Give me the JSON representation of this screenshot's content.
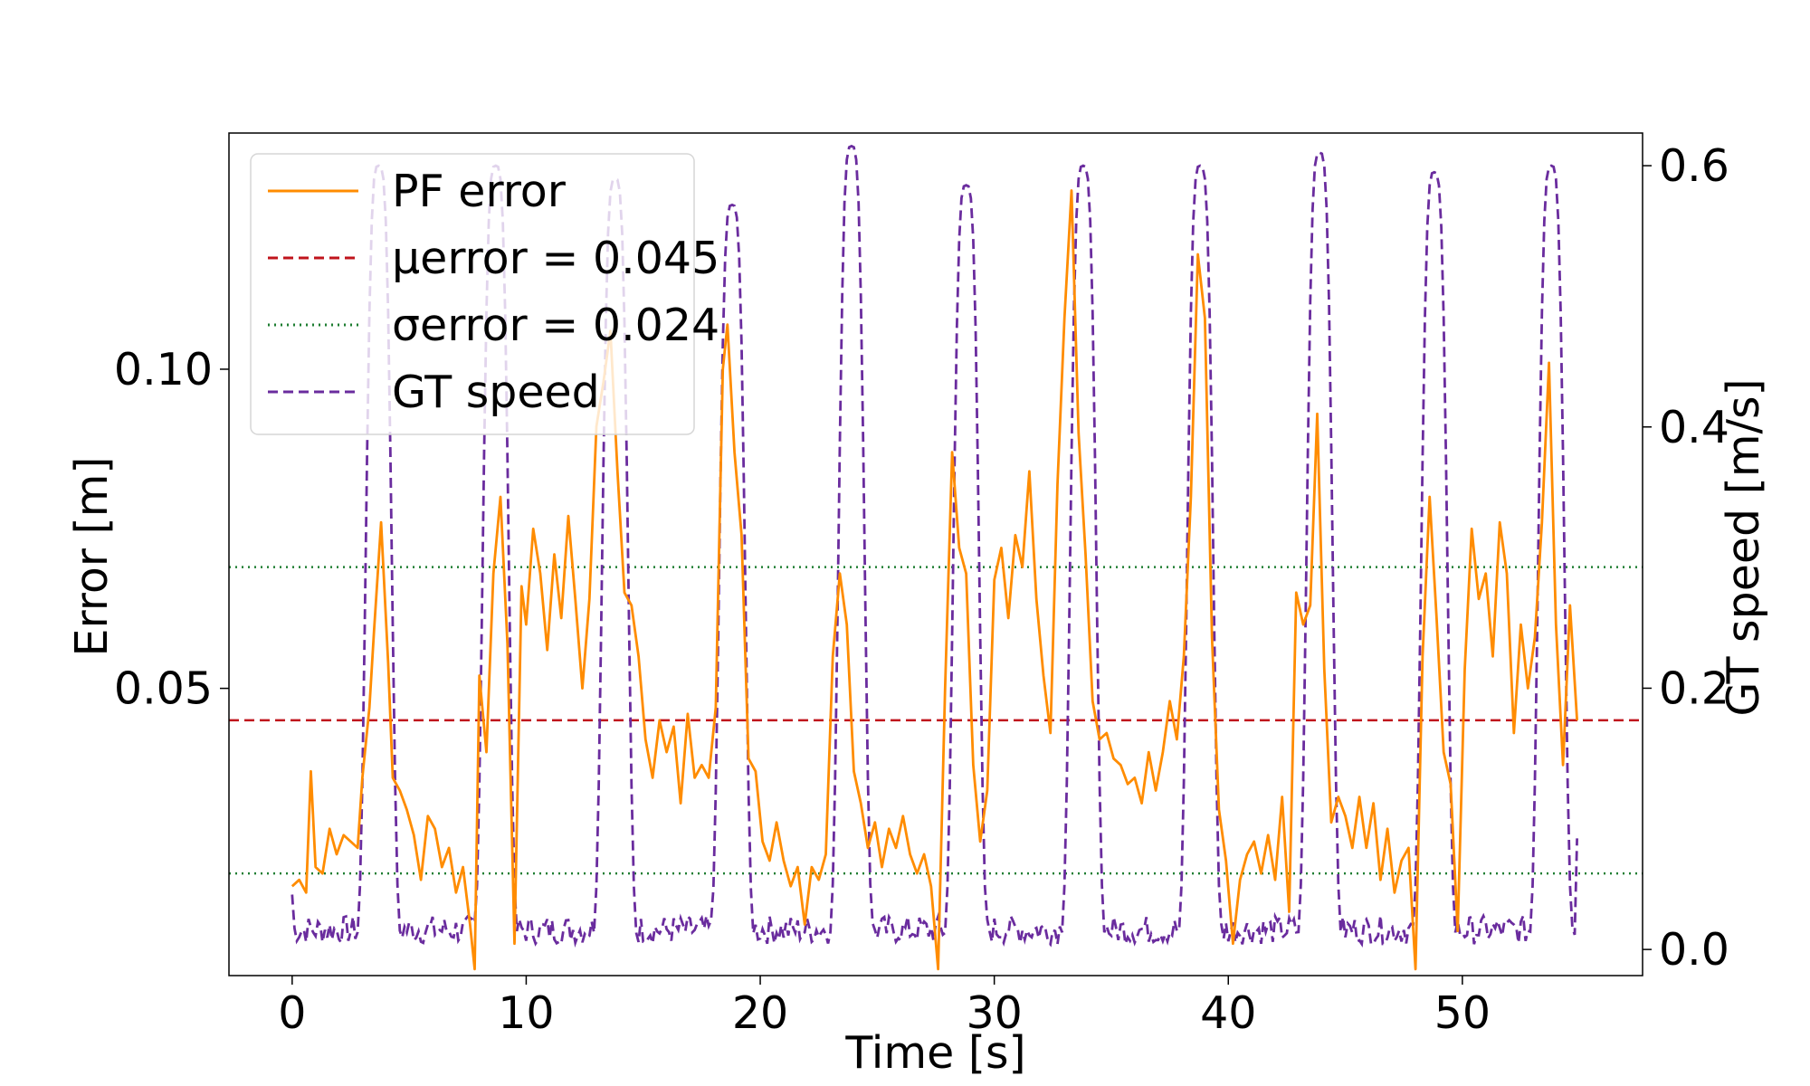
{
  "chart_data": {
    "type": "line",
    "xlabel": "Time [s]",
    "ylabel_left": "Error [m]",
    "ylabel_right": "GT speed [m/s]",
    "xlim": [
      -2.7,
      57.7
    ],
    "ylim_left": [
      0.005,
      0.137
    ],
    "ylim_right": [
      -0.02,
      0.625
    ],
    "xticks": [
      0,
      10,
      20,
      30,
      40,
      50
    ],
    "xtick_labels": [
      "0",
      "10",
      "20",
      "30",
      "40",
      "50"
    ],
    "yticks_left": [
      0.05,
      0.1
    ],
    "ytick_labels_left": [
      "0.05",
      "0.10"
    ],
    "yticks_right": [
      0.0,
      0.2,
      0.4,
      0.6
    ],
    "ytick_labels_right": [
      "0.0",
      "0.2",
      "0.4",
      "0.6"
    ],
    "legend": {
      "position": "top-left",
      "entries": [
        {
          "label": "PF error",
          "color": "#ff8c00",
          "style": "solid"
        },
        {
          "label": "μerror = 0.045",
          "color": "#c0141c",
          "style": "dashed"
        },
        {
          "label": "σerror = 0.024",
          "color": "#1e7d32",
          "style": "dotted"
        },
        {
          "label": "GT speed",
          "color": "#6a2c9e",
          "style": "dashed"
        }
      ]
    },
    "hlines": [
      {
        "name": "mean",
        "y": 0.045,
        "color": "#c0141c",
        "style": "dashed"
      },
      {
        "name": "mean+std",
        "y": 0.069,
        "color": "#1e7d32",
        "style": "dotted"
      },
      {
        "name": "mean-std",
        "y": 0.021,
        "color": "#1e7d32",
        "style": "dotted"
      }
    ],
    "gt_speed": {
      "color": "#6a2c9e",
      "axis": "right",
      "peaks": [
        {
          "t": 3.7,
          "v": 0.6
        },
        {
          "t": 8.7,
          "v": 0.6
        },
        {
          "t": 13.8,
          "v": 0.59
        },
        {
          "t": 18.8,
          "v": 0.57
        },
        {
          "t": 23.9,
          "v": 0.615
        },
        {
          "t": 28.8,
          "v": 0.585
        },
        {
          "t": 33.8,
          "v": 0.6
        },
        {
          "t": 38.8,
          "v": 0.6
        },
        {
          "t": 43.9,
          "v": 0.61
        },
        {
          "t": 48.8,
          "v": 0.595
        },
        {
          "t": 53.8,
          "v": 0.6
        }
      ],
      "baseline": 0.015,
      "t_start": 0.0,
      "t_end": 54.9,
      "end_value": 0.085
    },
    "pf_error": {
      "color": "#ff8c00",
      "axis": "left",
      "samples": [
        [
          0.0,
          0.019
        ],
        [
          0.3,
          0.02
        ],
        [
          0.6,
          0.018
        ],
        [
          0.8,
          0.037
        ],
        [
          1.0,
          0.022
        ],
        [
          1.3,
          0.021
        ],
        [
          1.6,
          0.028
        ],
        [
          1.9,
          0.024
        ],
        [
          2.2,
          0.027
        ],
        [
          2.5,
          0.026
        ],
        [
          2.8,
          0.025
        ],
        [
          3.0,
          0.036
        ],
        [
          3.3,
          0.047
        ],
        [
          3.5,
          0.059
        ],
        [
          3.8,
          0.076
        ],
        [
          4.1,
          0.054
        ],
        [
          4.3,
          0.036
        ],
        [
          4.6,
          0.034
        ],
        [
          4.9,
          0.031
        ],
        [
          5.2,
          0.027
        ],
        [
          5.5,
          0.02
        ],
        [
          5.8,
          0.03
        ],
        [
          6.1,
          0.028
        ],
        [
          6.4,
          0.022
        ],
        [
          6.7,
          0.025
        ],
        [
          7.0,
          0.018
        ],
        [
          7.3,
          0.022
        ],
        [
          7.6,
          0.013
        ],
        [
          7.8,
          0.006
        ],
        [
          8.0,
          0.052
        ],
        [
          8.3,
          0.04
        ],
        [
          8.6,
          0.068
        ],
        [
          8.9,
          0.08
        ],
        [
          9.2,
          0.057
        ],
        [
          9.5,
          0.01
        ],
        [
          9.8,
          0.066
        ],
        [
          10.0,
          0.06
        ],
        [
          10.3,
          0.075
        ],
        [
          10.6,
          0.068
        ],
        [
          10.9,
          0.056
        ],
        [
          11.2,
          0.071
        ],
        [
          11.5,
          0.061
        ],
        [
          11.8,
          0.077
        ],
        [
          12.1,
          0.064
        ],
        [
          12.4,
          0.05
        ],
        [
          12.7,
          0.064
        ],
        [
          13.0,
          0.091
        ],
        [
          13.3,
          0.098
        ],
        [
          13.6,
          0.106
        ],
        [
          13.9,
          0.084
        ],
        [
          14.2,
          0.065
        ],
        [
          14.5,
          0.063
        ],
        [
          14.8,
          0.055
        ],
        [
          15.1,
          0.042
        ],
        [
          15.4,
          0.036
        ],
        [
          15.7,
          0.045
        ],
        [
          16.0,
          0.04
        ],
        [
          16.3,
          0.044
        ],
        [
          16.6,
          0.032
        ],
        [
          16.9,
          0.046
        ],
        [
          17.2,
          0.036
        ],
        [
          17.5,
          0.038
        ],
        [
          17.8,
          0.036
        ],
        [
          18.1,
          0.047
        ],
        [
          18.4,
          0.1
        ],
        [
          18.6,
          0.107
        ],
        [
          18.9,
          0.087
        ],
        [
          19.2,
          0.074
        ],
        [
          19.5,
          0.039
        ],
        [
          19.8,
          0.037
        ],
        [
          20.1,
          0.026
        ],
        [
          20.4,
          0.023
        ],
        [
          20.7,
          0.029
        ],
        [
          21.0,
          0.023
        ],
        [
          21.3,
          0.019
        ],
        [
          21.6,
          0.022
        ],
        [
          21.9,
          0.013
        ],
        [
          22.2,
          0.022
        ],
        [
          22.5,
          0.02
        ],
        [
          22.8,
          0.024
        ],
        [
          23.1,
          0.055
        ],
        [
          23.4,
          0.068
        ],
        [
          23.7,
          0.06
        ],
        [
          24.0,
          0.037
        ],
        [
          24.3,
          0.032
        ],
        [
          24.6,
          0.025
        ],
        [
          24.9,
          0.029
        ],
        [
          25.2,
          0.022
        ],
        [
          25.5,
          0.028
        ],
        [
          25.8,
          0.025
        ],
        [
          26.1,
          0.03
        ],
        [
          26.4,
          0.024
        ],
        [
          26.7,
          0.021
        ],
        [
          27.0,
          0.024
        ],
        [
          27.3,
          0.019
        ],
        [
          27.6,
          0.006
        ],
        [
          27.9,
          0.05
        ],
        [
          28.2,
          0.087
        ],
        [
          28.5,
          0.072
        ],
        [
          28.8,
          0.068
        ],
        [
          29.1,
          0.038
        ],
        [
          29.4,
          0.026
        ],
        [
          29.7,
          0.034
        ],
        [
          30.0,
          0.067
        ],
        [
          30.3,
          0.072
        ],
        [
          30.6,
          0.061
        ],
        [
          30.9,
          0.074
        ],
        [
          31.2,
          0.069
        ],
        [
          31.5,
          0.084
        ],
        [
          31.8,
          0.064
        ],
        [
          32.1,
          0.052
        ],
        [
          32.4,
          0.043
        ],
        [
          32.7,
          0.082
        ],
        [
          33.0,
          0.108
        ],
        [
          33.3,
          0.128
        ],
        [
          33.6,
          0.09
        ],
        [
          33.9,
          0.071
        ],
        [
          34.2,
          0.048
        ],
        [
          34.5,
          0.042
        ],
        [
          34.8,
          0.043
        ],
        [
          35.1,
          0.039
        ],
        [
          35.4,
          0.038
        ],
        [
          35.7,
          0.035
        ],
        [
          36.0,
          0.036
        ],
        [
          36.3,
          0.032
        ],
        [
          36.6,
          0.04
        ],
        [
          36.9,
          0.034
        ],
        [
          37.2,
          0.04
        ],
        [
          37.5,
          0.048
        ],
        [
          37.8,
          0.042
        ],
        [
          38.1,
          0.055
        ],
        [
          38.4,
          0.08
        ],
        [
          38.7,
          0.118
        ],
        [
          39.0,
          0.108
        ],
        [
          39.3,
          0.058
        ],
        [
          39.6,
          0.031
        ],
        [
          39.9,
          0.023
        ],
        [
          40.2,
          0.01
        ],
        [
          40.5,
          0.02
        ],
        [
          40.8,
          0.024
        ],
        [
          41.1,
          0.026
        ],
        [
          41.4,
          0.021
        ],
        [
          41.7,
          0.027
        ],
        [
          42.0,
          0.02
        ],
        [
          42.3,
          0.033
        ],
        [
          42.6,
          0.015
        ],
        [
          42.9,
          0.065
        ],
        [
          43.2,
          0.06
        ],
        [
          43.5,
          0.063
        ],
        [
          43.8,
          0.093
        ],
        [
          44.1,
          0.053
        ],
        [
          44.4,
          0.029
        ],
        [
          44.7,
          0.033
        ],
        [
          45.0,
          0.03
        ],
        [
          45.3,
          0.025
        ],
        [
          45.6,
          0.033
        ],
        [
          45.9,
          0.025
        ],
        [
          46.2,
          0.032
        ],
        [
          46.5,
          0.02
        ],
        [
          46.8,
          0.028
        ],
        [
          47.1,
          0.018
        ],
        [
          47.4,
          0.023
        ],
        [
          47.7,
          0.025
        ],
        [
          48.0,
          0.006
        ],
        [
          48.3,
          0.055
        ],
        [
          48.6,
          0.08
        ],
        [
          48.9,
          0.061
        ],
        [
          49.2,
          0.04
        ],
        [
          49.5,
          0.035
        ],
        [
          49.8,
          0.012
        ],
        [
          50.1,
          0.053
        ],
        [
          50.4,
          0.075
        ],
        [
          50.7,
          0.064
        ],
        [
          51.0,
          0.068
        ],
        [
          51.3,
          0.055
        ],
        [
          51.6,
          0.076
        ],
        [
          51.9,
          0.068
        ],
        [
          52.2,
          0.043
        ],
        [
          52.5,
          0.06
        ],
        [
          52.8,
          0.05
        ],
        [
          53.1,
          0.058
        ],
        [
          53.4,
          0.076
        ],
        [
          53.7,
          0.101
        ],
        [
          54.0,
          0.06
        ],
        [
          54.3,
          0.038
        ],
        [
          54.6,
          0.063
        ],
        [
          54.9,
          0.045
        ]
      ]
    }
  }
}
